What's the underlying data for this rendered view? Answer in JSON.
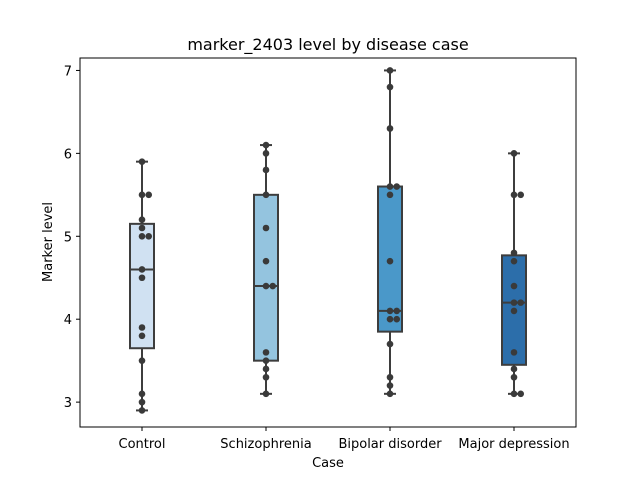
{
  "chart_data": {
    "type": "box",
    "title": "marker_2403 level by disease case",
    "xlabel": "Case",
    "ylabel": "Marker level",
    "ylim": [
      2.7,
      7.15
    ],
    "yticks": [
      3,
      4,
      5,
      6,
      7
    ],
    "grid": false,
    "legend": "none",
    "categories": [
      "Control",
      "Schizophrenia",
      "Bipolar disorder",
      "Major depression"
    ],
    "colors": [
      "#d0e1f2",
      "#94c4df",
      "#4a98c9",
      "#2c6eaa"
    ],
    "boxes": [
      {
        "category": "Control",
        "whisker_low": 2.9,
        "q1": 3.65,
        "median": 4.6,
        "q3": 5.15,
        "whisker_high": 5.9
      },
      {
        "category": "Schizophrenia",
        "whisker_low": 3.1,
        "q1": 3.5,
        "median": 4.4,
        "q3": 5.5,
        "whisker_high": 6.1
      },
      {
        "category": "Bipolar disorder",
        "whisker_low": 3.1,
        "q1": 3.85,
        "median": 4.1,
        "q3": 5.6,
        "whisker_high": 7.0
      },
      {
        "category": "Major depression",
        "whisker_low": 3.1,
        "q1": 3.45,
        "median": 4.2,
        "q3": 4.77,
        "whisker_high": 6.0
      }
    ],
    "points": [
      {
        "category": "Control",
        "values": [
          2.9,
          3.0,
          3.1,
          3.5,
          3.8,
          3.9,
          4.5,
          4.6,
          5.0,
          5.0,
          5.1,
          5.2,
          5.5,
          5.5,
          5.9
        ]
      },
      {
        "category": "Schizophrenia",
        "values": [
          3.1,
          3.3,
          3.4,
          3.5,
          3.6,
          4.4,
          4.4,
          4.7,
          5.1,
          5.5,
          5.8,
          6.0,
          6.1
        ]
      },
      {
        "category": "Bipolar disorder",
        "values": [
          3.1,
          3.2,
          3.3,
          3.7,
          4.0,
          4.0,
          4.1,
          4.1,
          4.7,
          5.5,
          5.6,
          5.6,
          6.3,
          6.8,
          7.0
        ]
      },
      {
        "category": "Major depression",
        "values": [
          3.1,
          3.1,
          3.3,
          3.4,
          3.6,
          4.1,
          4.2,
          4.2,
          4.4,
          4.7,
          4.8,
          5.5,
          5.5,
          6.0
        ]
      }
    ]
  }
}
